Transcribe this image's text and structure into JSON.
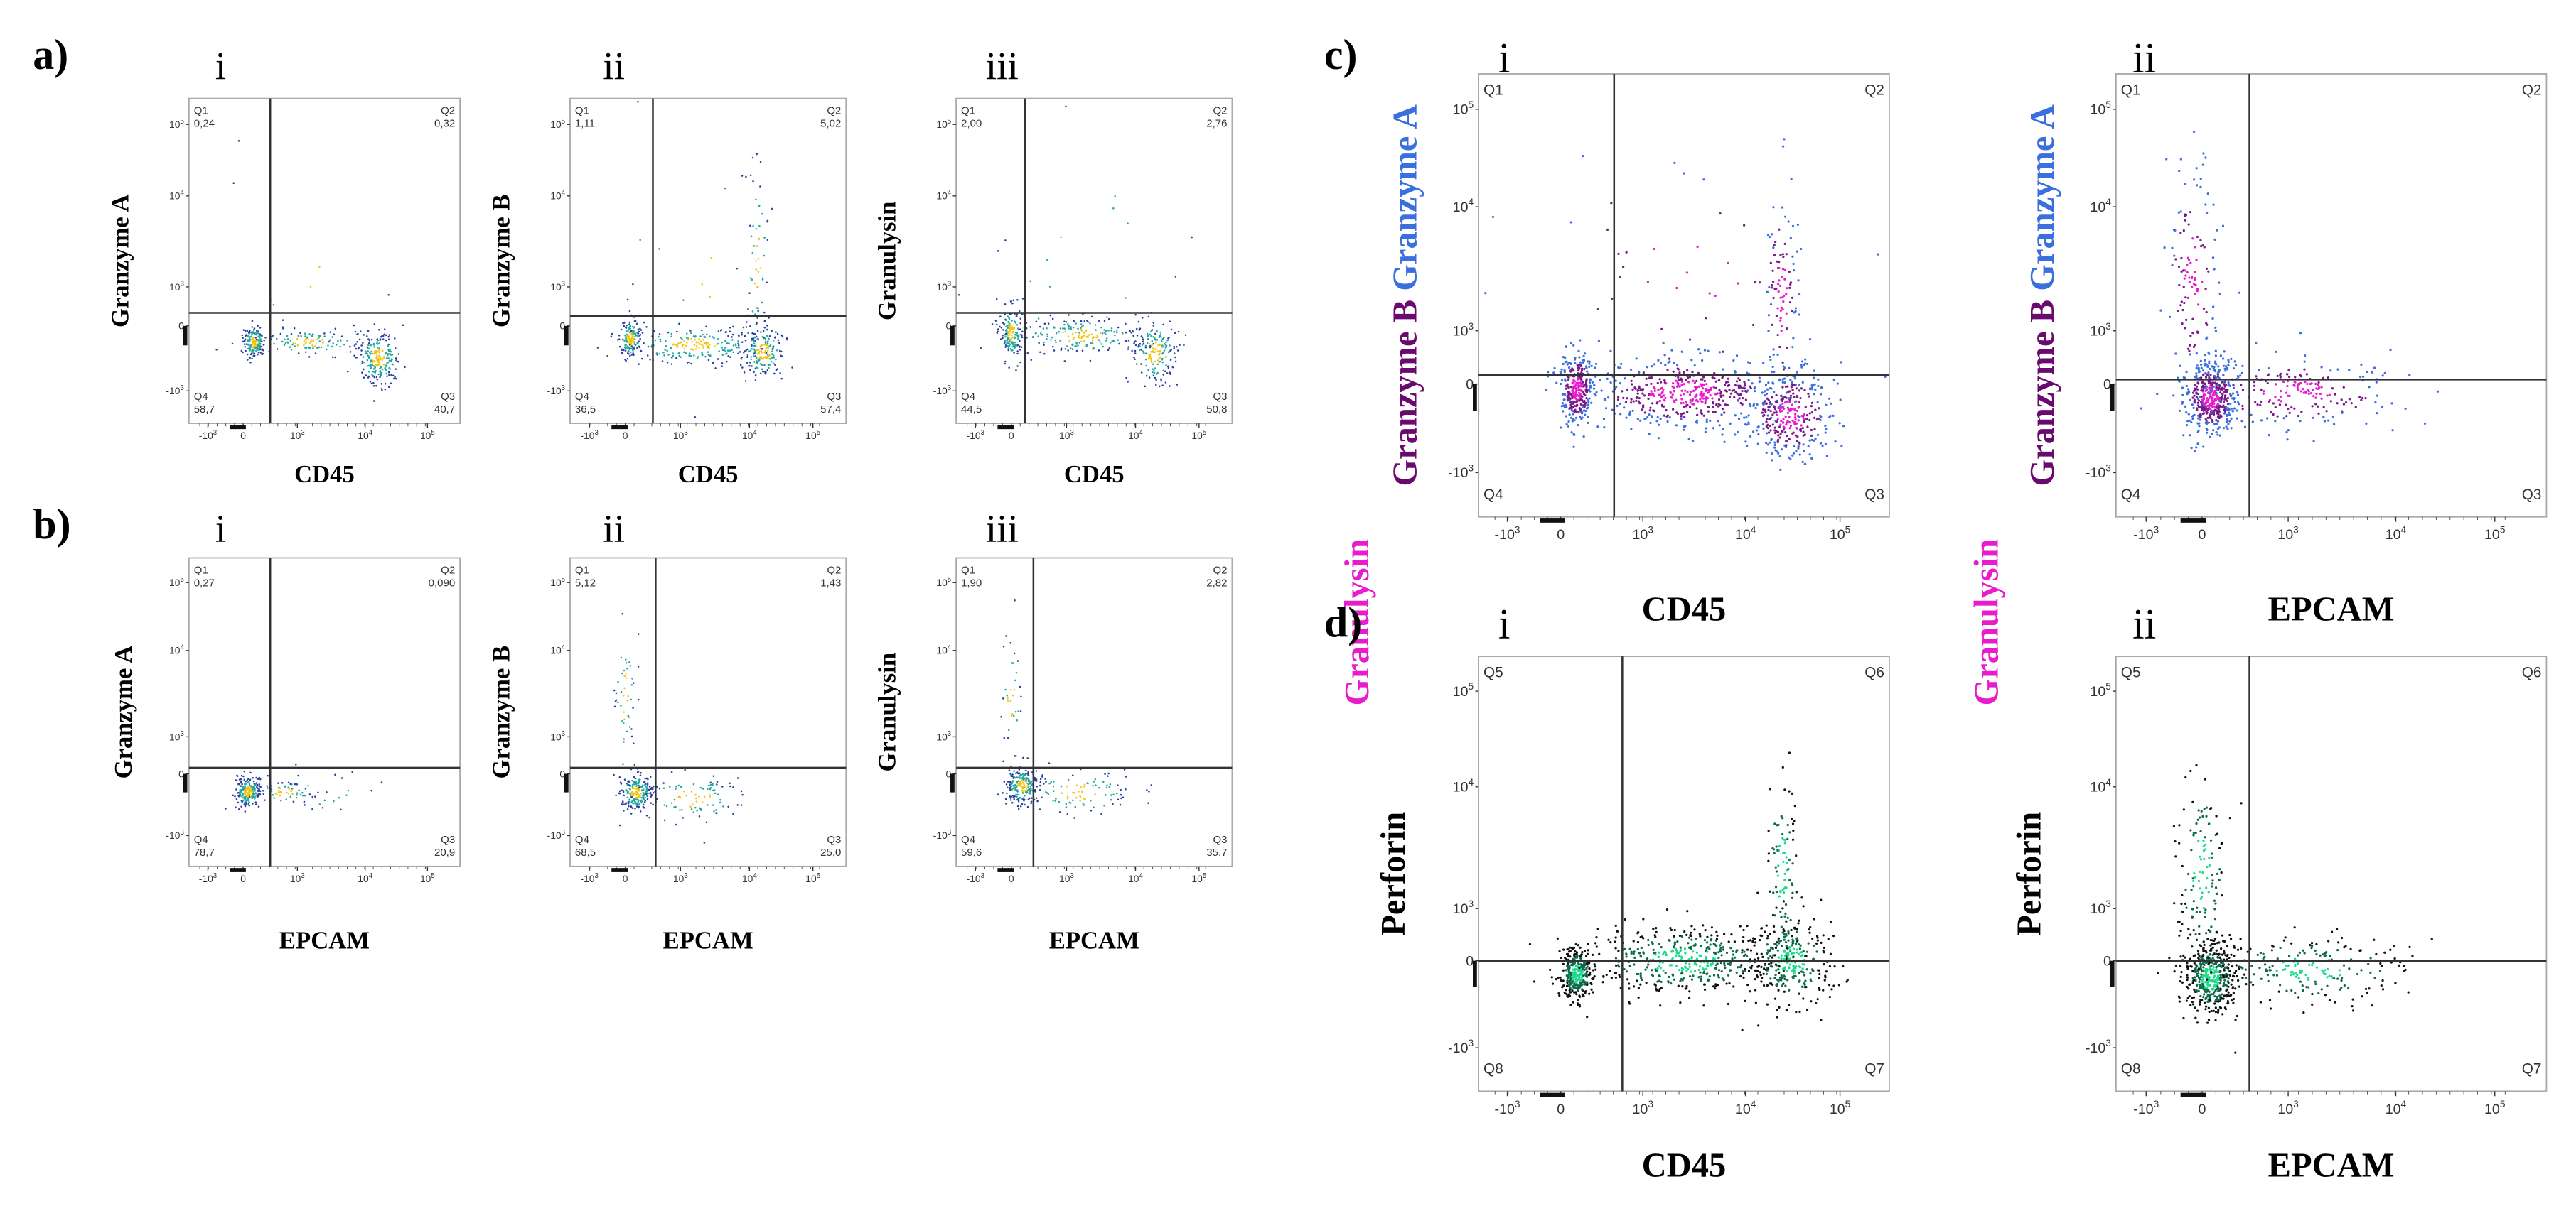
{
  "tick_labels": {
    "y": [
      {
        "base": "10",
        "exp": "5"
      },
      {
        "base": "10",
        "exp": "4"
      },
      {
        "base": "10",
        "exp": "3"
      },
      {
        "base": "0"
      },
      {
        "base": "-10",
        "exp": "3"
      }
    ],
    "x": [
      {
        "base": "-10",
        "exp": "3"
      },
      {
        "base": "0"
      },
      {
        "base": "10",
        "exp": "3"
      },
      {
        "base": "10",
        "exp": "4"
      },
      {
        "base": "10",
        "exp": "5"
      }
    ]
  },
  "panels": [
    {
      "label": "a)",
      "plots": [
        {
          "numeral": "i",
          "y_label": [
            [
              {
                "text": "Granzyme A",
                "color": "#000000"
              }
            ]
          ],
          "x_label": "CD45",
          "quadrants": [
            {
              "name": "Q1",
              "value": "0,24"
            },
            {
              "name": "Q2",
              "value": "0,32"
            },
            {
              "name": "Q3",
              "value": "40,7"
            },
            {
              "name": "Q4",
              "value": "58,7"
            }
          ]
        },
        {
          "numeral": "ii",
          "y_label": [
            [
              {
                "text": "Granzyme B",
                "color": "#000000"
              }
            ]
          ],
          "x_label": "CD45",
          "quadrants": [
            {
              "name": "Q1",
              "value": "1,11"
            },
            {
              "name": "Q2",
              "value": "5,02"
            },
            {
              "name": "Q3",
              "value": "57,4"
            },
            {
              "name": "Q4",
              "value": "36,5"
            }
          ]
        },
        {
          "numeral": "iii",
          "y_label": [
            [
              {
                "text": "Granulysin",
                "color": "#000000"
              }
            ]
          ],
          "x_label": "CD45",
          "quadrants": [
            {
              "name": "Q1",
              "value": "2,00"
            },
            {
              "name": "Q2",
              "value": "2,76"
            },
            {
              "name": "Q3",
              "value": "50,8"
            },
            {
              "name": "Q4",
              "value": "44,5"
            }
          ]
        }
      ]
    },
    {
      "label": "b)",
      "plots": [
        {
          "numeral": "i",
          "y_label": [
            [
              {
                "text": "Granzyme A",
                "color": "#000000"
              }
            ]
          ],
          "x_label": "EPCAM",
          "quadrants": [
            {
              "name": "Q1",
              "value": "0,27"
            },
            {
              "name": "Q2",
              "value": "0,090"
            },
            {
              "name": "Q3",
              "value": "20,9"
            },
            {
              "name": "Q4",
              "value": "78,7"
            }
          ]
        },
        {
          "numeral": "ii",
          "y_label": [
            [
              {
                "text": "Granzyme B",
                "color": "#000000"
              }
            ]
          ],
          "x_label": "EPCAM",
          "quadrants": [
            {
              "name": "Q1",
              "value": "5,12"
            },
            {
              "name": "Q2",
              "value": "1,43"
            },
            {
              "name": "Q3",
              "value": "25,0"
            },
            {
              "name": "Q4",
              "value": "68,5"
            }
          ]
        },
        {
          "numeral": "iii",
          "y_label": [
            [
              {
                "text": "Granulysin",
                "color": "#000000"
              }
            ]
          ],
          "x_label": "EPCAM",
          "quadrants": [
            {
              "name": "Q1",
              "value": "1,90"
            },
            {
              "name": "Q2",
              "value": "2,82"
            },
            {
              "name": "Q3",
              "value": "35,7"
            },
            {
              "name": "Q4",
              "value": "59,6"
            }
          ]
        }
      ]
    },
    {
      "label": "c)",
      "plots": [
        {
          "numeral": "i",
          "y_label": [
            [
              {
                "text": "Granulysin",
                "color": "#e81ccc"
              }
            ],
            [
              {
                "text": "Granzyme B",
                "color": "#6b0a6e"
              },
              {
                "text": "Granzyme A",
                "color": "#3b6fde"
              }
            ]
          ],
          "x_label": "CD45",
          "quadrants": [
            {
              "name": "Q1"
            },
            {
              "name": "Q2"
            },
            {
              "name": "Q3"
            },
            {
              "name": "Q4"
            }
          ]
        },
        {
          "numeral": "ii",
          "y_label": [
            [
              {
                "text": "Granulysin",
                "color": "#e81ccc"
              }
            ],
            [
              {
                "text": "Granzyme B",
                "color": "#6b0a6e"
              },
              {
                "text": "Granzyme A",
                "color": "#3b6fde"
              }
            ]
          ],
          "x_label": "EPCAM",
          "quadrants": [
            {
              "name": "Q1"
            },
            {
              "name": "Q2"
            },
            {
              "name": "Q3"
            },
            {
              "name": "Q4"
            }
          ]
        }
      ]
    },
    {
      "label": "d)",
      "plots": [
        {
          "numeral": "i",
          "y_label": [
            [
              {
                "text": "Perforin",
                "color": "#000000"
              }
            ]
          ],
          "x_label": "CD45",
          "quadrants": [
            {
              "name": "Q5"
            },
            {
              "name": "Q6"
            },
            {
              "name": "Q7"
            },
            {
              "name": "Q8"
            }
          ]
        },
        {
          "numeral": "ii",
          "y_label": [
            [
              {
                "text": "Perforin",
                "color": "#000000"
              }
            ]
          ],
          "x_label": "EPCAM",
          "quadrants": [
            {
              "name": "Q5"
            },
            {
              "name": "Q6"
            },
            {
              "name": "Q7"
            },
            {
              "name": "Q8"
            }
          ]
        }
      ]
    }
  ]
}
